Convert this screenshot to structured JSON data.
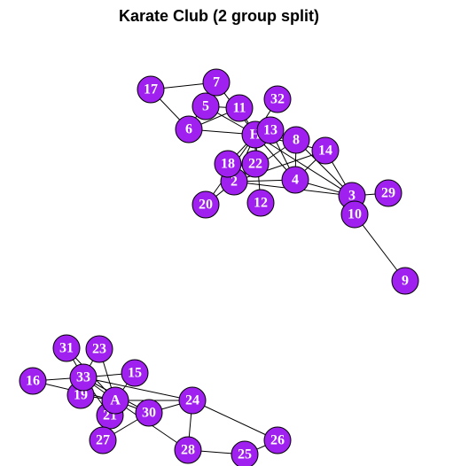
{
  "title": "Karate Club (2 group split)",
  "colors": {
    "node_fill": "#a020f0",
    "node_stroke": "#000000",
    "label": "#ffffff",
    "edge": "#000000"
  },
  "nodes": [
    "H",
    "2",
    "3",
    "4",
    "5",
    "6",
    "7",
    "8",
    "9",
    "10",
    "11",
    "12",
    "13",
    "14",
    "15",
    "16",
    "17",
    "18",
    "19",
    "20",
    "21",
    "22",
    "23",
    "24",
    "25",
    "26",
    "27",
    "28",
    "29",
    "30",
    "31",
    "32",
    "33",
    "A"
  ],
  "edges": [
    [
      "H",
      "2"
    ],
    [
      "H",
      "3"
    ],
    [
      "H",
      "4"
    ],
    [
      "H",
      "5"
    ],
    [
      "H",
      "6"
    ],
    [
      "H",
      "7"
    ],
    [
      "H",
      "8"
    ],
    [
      "H",
      "11"
    ],
    [
      "H",
      "12"
    ],
    [
      "H",
      "13"
    ],
    [
      "H",
      "14"
    ],
    [
      "H",
      "18"
    ],
    [
      "H",
      "20"
    ],
    [
      "H",
      "22"
    ],
    [
      "H",
      "32"
    ],
    [
      "2",
      "3"
    ],
    [
      "2",
      "4"
    ],
    [
      "2",
      "8"
    ],
    [
      "2",
      "14"
    ],
    [
      "2",
      "18"
    ],
    [
      "2",
      "20"
    ],
    [
      "2",
      "22"
    ],
    [
      "3",
      "4"
    ],
    [
      "3",
      "8"
    ],
    [
      "3",
      "10"
    ],
    [
      "3",
      "14"
    ],
    [
      "3",
      "29"
    ],
    [
      "4",
      "8"
    ],
    [
      "4",
      "13"
    ],
    [
      "4",
      "14"
    ],
    [
      "5",
      "7"
    ],
    [
      "5",
      "11"
    ],
    [
      "6",
      "7"
    ],
    [
      "6",
      "11"
    ],
    [
      "6",
      "17"
    ],
    [
      "7",
      "17"
    ],
    [
      "9",
      "10"
    ],
    [
      "A",
      "15"
    ],
    [
      "A",
      "16"
    ],
    [
      "A",
      "19"
    ],
    [
      "A",
      "21"
    ],
    [
      "A",
      "23"
    ],
    [
      "A",
      "24"
    ],
    [
      "A",
      "27"
    ],
    [
      "A",
      "28"
    ],
    [
      "A",
      "30"
    ],
    [
      "A",
      "31"
    ],
    [
      "A",
      "33"
    ],
    [
      "33",
      "16"
    ],
    [
      "33",
      "19"
    ],
    [
      "33",
      "21"
    ],
    [
      "33",
      "23"
    ],
    [
      "33",
      "24"
    ],
    [
      "33",
      "30"
    ],
    [
      "33",
      "31"
    ],
    [
      "33",
      "15"
    ],
    [
      "24",
      "26"
    ],
    [
      "24",
      "28"
    ],
    [
      "24",
      "30"
    ],
    [
      "25",
      "28"
    ],
    [
      "25",
      "26"
    ],
    [
      "27",
      "30"
    ]
  ]
}
